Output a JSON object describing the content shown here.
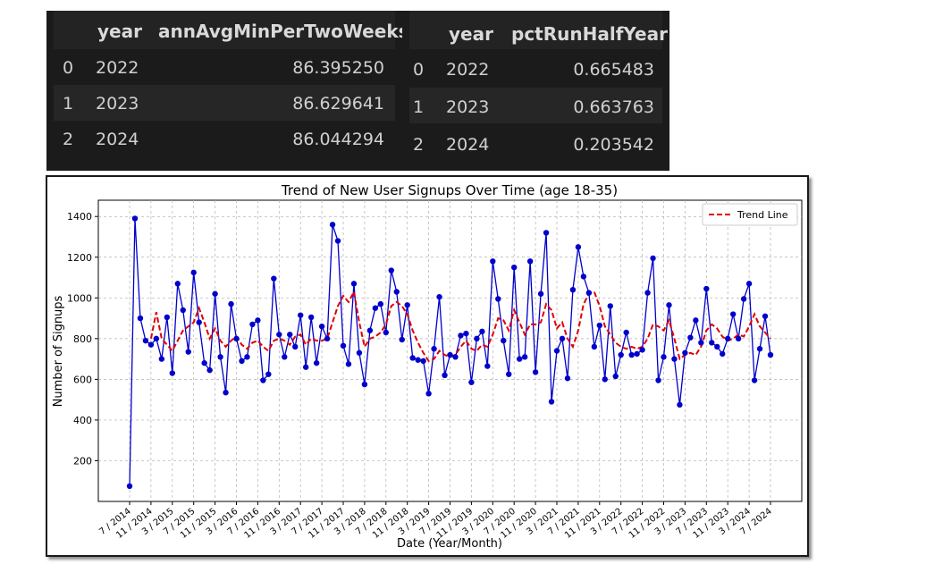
{
  "table1": {
    "columns": [
      "",
      "year",
      "annAvgMinPerTwoWeeks"
    ],
    "rows": [
      {
        "index": "0",
        "year": "2022",
        "value": "86.395250"
      },
      {
        "index": "1",
        "year": "2023",
        "value": "86.629641"
      },
      {
        "index": "2",
        "year": "2024",
        "value": "86.044294"
      }
    ]
  },
  "table2": {
    "columns": [
      "",
      "year",
      "pctRunHalfYear"
    ],
    "rows": [
      {
        "index": "0",
        "year": "2022",
        "value": "0.665483"
      },
      {
        "index": "1",
        "year": "2023",
        "value": "0.663763"
      },
      {
        "index": "2",
        "year": "2024",
        "value": "0.203542"
      }
    ]
  },
  "chart_data": {
    "type": "line",
    "title": "Trend of New User Signups Over Time (age 18-35)",
    "xlabel": "Date (Year/Month)",
    "ylabel": "Number of Signups",
    "ylim": [
      0,
      1480
    ],
    "yticks": [
      200,
      400,
      600,
      800,
      1000,
      1200,
      1400
    ],
    "xticks": [
      "7 / 2014",
      "11 / 2014",
      "3 / 2015",
      "7 / 2015",
      "11 / 2015",
      "3 / 2016",
      "7 / 2016",
      "11 / 2016",
      "3 / 2017",
      "7 / 2017",
      "11 / 2017",
      "3 / 2018",
      "7 / 2018",
      "11 / 2018",
      "3 / 2019",
      "7 / 2019",
      "11 / 2019",
      "3 / 2020",
      "7 / 2020",
      "11 / 2020",
      "3 / 2021",
      "7 / 2021",
      "11 / 2021",
      "3 / 2022",
      "7 / 2022",
      "11 / 2022",
      "3 / 2023",
      "7 / 2023",
      "11 / 2023",
      "3 / 2024",
      "7 / 2024"
    ],
    "grid": true,
    "legend": "top-right",
    "series": [
      {
        "color": "#0000cc",
        "marker": "circle",
        "values": [
          75,
          1390,
          900,
          790,
          770,
          800,
          700,
          905,
          630,
          1070,
          940,
          735,
          1125,
          880,
          680,
          645,
          1020,
          710,
          535,
          970,
          800,
          690,
          710,
          870,
          890,
          595,
          625,
          1095,
          820,
          710,
          820,
          760,
          915,
          660,
          905,
          680,
          860,
          800,
          1360,
          1280,
          765,
          675,
          1070,
          730,
          575,
          840,
          950,
          970,
          830,
          1135,
          1030,
          795,
          965,
          705,
          695,
          690,
          530,
          750,
          1005,
          620,
          720,
          710,
          815,
          825,
          585,
          800,
          835,
          665,
          1180,
          995,
          790,
          625,
          1150,
          700,
          710,
          1180,
          635,
          1020,
          1320,
          490,
          740,
          800,
          605,
          1040,
          1250,
          1105,
          1025,
          760,
          865,
          600,
          960,
          615,
          720,
          830,
          720,
          725,
          745,
          1025,
          1195,
          595,
          710,
          965,
          700,
          475,
          730,
          805,
          890,
          780,
          1045,
          780,
          760,
          725,
          800,
          920,
          800,
          995,
          1070,
          595,
          750,
          910,
          720
        ]
      },
      {
        "name": "Trend Line",
        "color": "#e00000",
        "dash": true,
        "values": [
          null,
          null,
          null,
          null,
          800,
          930,
          800,
          770,
          740,
          790,
          840,
          860,
          880,
          950,
          880,
          800,
          850,
          790,
          760,
          790,
          810,
          770,
          750,
          780,
          790,
          760,
          740,
          790,
          800,
          790,
          770,
          810,
          820,
          770,
          800,
          790,
          790,
          800,
          880,
          960,
          1010,
          980,
          1030,
          880,
          760,
          800,
          810,
          830,
          870,
          960,
          980,
          960,
          920,
          840,
          780,
          730,
          690,
          700,
          740,
          720,
          710,
          720,
          760,
          790,
          750,
          740,
          770,
          760,
          820,
          900,
          890,
          840,
          940,
          880,
          820,
          870,
          870,
          880,
          970,
          940,
          850,
          880,
          800,
          760,
          840,
          970,
          1020,
          1030,
          960,
          860,
          820,
          780,
          760,
          750,
          760,
          750,
          760,
          800,
          870,
          860,
          840,
          890,
          800,
          700,
          720,
          730,
          720,
          760,
          840,
          870,
          850,
          810,
          790,
          800,
          820,
          810,
          860,
          920,
          860,
          830,
          800
        ]
      }
    ]
  }
}
